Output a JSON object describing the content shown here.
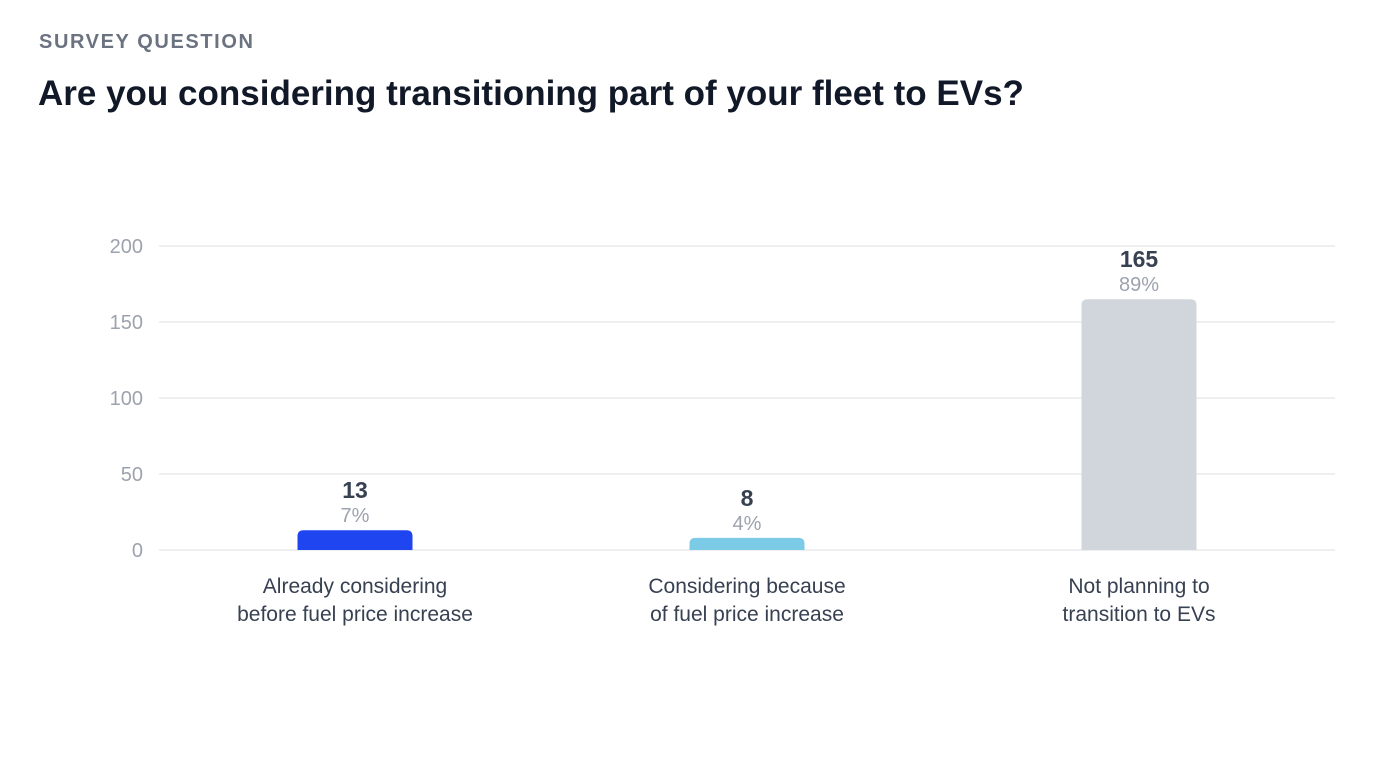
{
  "header": {
    "eyebrow": "SURVEY QUESTION",
    "title": "Are you considering transitioning part of your fleet to EVs?"
  },
  "chart_data": {
    "type": "bar",
    "title": "",
    "xlabel": "",
    "ylabel": "",
    "ylim": [
      0,
      200
    ],
    "yticks": [
      0,
      50,
      100,
      150,
      200
    ],
    "grid": true,
    "categories": [
      [
        "Already considering",
        "before fuel price increase"
      ],
      [
        "Considering because",
        "of fuel price increase"
      ],
      [
        "Not planning to",
        "transition to EVs"
      ]
    ],
    "values": [
      13,
      8,
      165
    ],
    "percent_labels": [
      "7%",
      "4%",
      "89%"
    ],
    "colors": [
      "#1f45f0",
      "#7ccbe6",
      "#d1d5dc"
    ]
  }
}
